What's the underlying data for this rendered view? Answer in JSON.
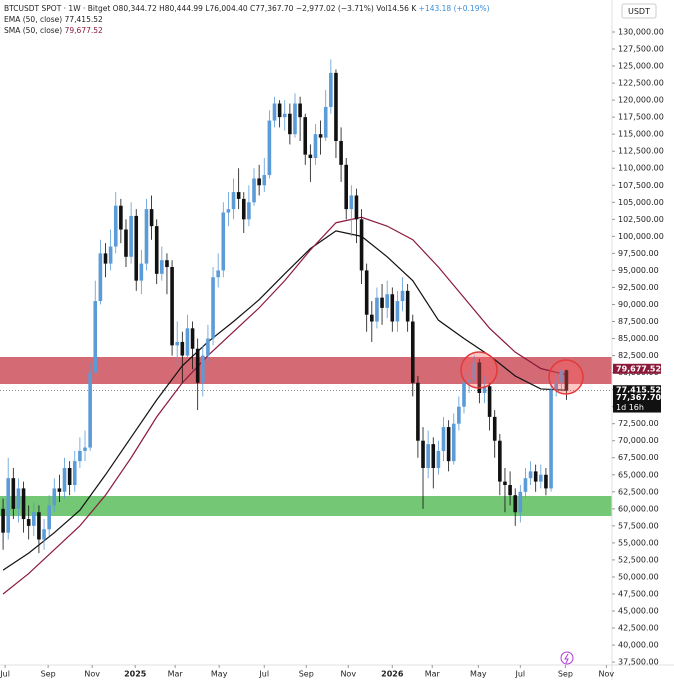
{
  "chart_data": {
    "type": "candlestick",
    "header": {
      "symbol": "BTCUSDT SPOT · 1W · Bitget",
      "ohlc": "O80,344.72 H80,444.99 L76,004.40 C77,367.70 −2,977.02 (−3.71%)",
      "volume": "Vol14.56 K",
      "change": "+143.18 (+0.19%)"
    },
    "currency": "USDT",
    "up_color": "#5b9bd8",
    "down_color": "#111111",
    "open": [
      60000,
      56500,
      64500,
      60000,
      63000,
      58500,
      57500,
      59500,
      55500,
      57000,
      60500,
      63000,
      62500,
      66000,
      63500,
      67000,
      68500,
      69000,
      80000,
      90500,
      97500,
      96000,
      98500,
      104500,
      101000,
      97000,
      103000,
      93500,
      96000,
      104000,
      101500,
      94500,
      96500,
      95500,
      84000,
      84500,
      82500,
      86500,
      83500,
      78500,
      82500,
      85000,
      94000,
      95000,
      103500,
      104000,
      106500,
      105500,
      102500,
      105000,
      108500,
      107500,
      109000,
      117000,
      119500,
      117500,
      118000,
      115000,
      119500,
      117500,
      112000,
      111500,
      115000,
      114500,
      119000,
      124000,
      114000,
      110500,
      104000,
      106000,
      102500,
      95000,
      88500,
      87500,
      91000,
      89500,
      91500,
      87500,
      90500,
      92000,
      87500,
      78500,
      70000,
      66000,
      69500,
      66000,
      68500,
      72000,
      67000,
      72500,
      75000,
      78500,
      79000,
      81500,
      77000,
      78000,
      73500,
      70000,
      64000,
      63500,
      62000,
      59500,
      62500,
      64500,
      65500,
      64000,
      65000,
      63000,
      77500,
      78500,
      80344.72
    ],
    "high": [
      61500,
      67500,
      66000,
      64500,
      64000,
      60500,
      61000,
      60500,
      58500,
      62000,
      64500,
      65000,
      67500,
      67000,
      68500,
      70500,
      71500,
      81500,
      93500,
      99500,
      99000,
      101000,
      106500,
      105500,
      102500,
      105000,
      104000,
      98000,
      105500,
      106000,
      102500,
      98500,
      97500,
      96500,
      87500,
      86000,
      88500,
      87500,
      85000,
      84000,
      87000,
      95500,
      97500,
      105000,
      106500,
      108500,
      110000,
      106500,
      107500,
      110000,
      110500,
      111500,
      118500,
      120500,
      120000,
      120000,
      119500,
      121000,
      120500,
      118000,
      113500,
      116500,
      117000,
      121500,
      126000,
      124500,
      116000,
      111500,
      107500,
      107000,
      104000,
      96000,
      90500,
      92500,
      93000,
      93500,
      92500,
      92000,
      94000,
      93000,
      88500,
      79500,
      72000,
      71500,
      70500,
      70000,
      73500,
      73000,
      74000,
      76500,
      80000,
      81000,
      82500,
      82000,
      79500,
      78500,
      74500,
      71000,
      66000,
      65500,
      63000,
      63500,
      66000,
      67000,
      66500,
      66500,
      66000,
      79000,
      80000,
      81000,
      80444.99
    ],
    "low": [
      54000,
      55500,
      58500,
      58000,
      56500,
      55500,
      56000,
      53500,
      54000,
      56000,
      59500,
      61000,
      61500,
      62000,
      62500,
      66000,
      67000,
      68500,
      79000,
      90000,
      94000,
      95000,
      97500,
      99000,
      95500,
      96000,
      92000,
      91500,
      95000,
      99500,
      93000,
      93500,
      91500,
      82500,
      81000,
      78500,
      82000,
      80500,
      74500,
      76500,
      81500,
      84000,
      92500,
      94000,
      101500,
      102500,
      104000,
      100500,
      101500,
      104500,
      106000,
      106500,
      108500,
      116000,
      116000,
      115500,
      113500,
      114500,
      114000,
      110500,
      108000,
      110500,
      112000,
      114000,
      118000,
      111500,
      108000,
      102500,
      100000,
      99000,
      93000,
      86000,
      84500,
      86500,
      87000,
      88000,
      86000,
      86000,
      89000,
      86000,
      76500,
      67500,
      60000,
      64500,
      63000,
      65000,
      67000,
      65500,
      66500,
      71500,
      74000,
      77000,
      78500,
      75500,
      75500,
      71500,
      67500,
      62000,
      59500,
      60500,
      57500,
      58000,
      61500,
      63500,
      62500,
      63000,
      62000,
      62500,
      76500,
      77500,
      76004.4
    ],
    "close": [
      56500,
      64500,
      60000,
      63000,
      58500,
      57500,
      59500,
      55500,
      57000,
      60500,
      63000,
      62500,
      66000,
      63500,
      67000,
      68500,
      69000,
      80000,
      90500,
      97500,
      96000,
      98500,
      104500,
      101000,
      97000,
      103000,
      93500,
      96000,
      104000,
      101500,
      94500,
      96500,
      95500,
      84000,
      84500,
      82500,
      86500,
      83500,
      78500,
      82500,
      85000,
      94000,
      95000,
      103500,
      104000,
      106500,
      105500,
      102500,
      105000,
      108500,
      107500,
      109000,
      117000,
      119500,
      117500,
      118000,
      115000,
      119500,
      117500,
      112000,
      111500,
      115000,
      114500,
      119000,
      124000,
      114000,
      110500,
      104000,
      106000,
      102500,
      95000,
      88500,
      87500,
      91000,
      89500,
      91500,
      87500,
      90500,
      92000,
      87500,
      78500,
      70000,
      66000,
      69500,
      66000,
      68500,
      72000,
      67000,
      72500,
      75000,
      78500,
      79000,
      81500,
      77000,
      78000,
      73500,
      70000,
      64000,
      63500,
      62000,
      59500,
      62500,
      64500,
      65500,
      64000,
      65000,
      63000,
      77500,
      78500,
      80344.72,
      77367.7
    ],
    "indicators": [
      {
        "name": "EMA (50, close)",
        "last_label": "77,415.52",
        "color": "#111111",
        "x": [
          0,
          5,
          10,
          15,
          20,
          25,
          30,
          35,
          40,
          45,
          50,
          55,
          60,
          65,
          70,
          75,
          80,
          85,
          90,
          95,
          100,
          105,
          110
        ],
        "values": [
          51000,
          53500,
          56500,
          59800,
          65000,
          70500,
          76000,
          81000,
          84500,
          87500,
          90700,
          94500,
          98200,
          100800,
          100000,
          97000,
          93500,
          87700,
          85000,
          82500,
          79500,
          77600,
          77415.52
        ]
      },
      {
        "name": "SMA (50, close)",
        "last_label": "79,677.52",
        "color": "#8b1a3a",
        "x": [
          0,
          5,
          10,
          15,
          20,
          25,
          30,
          35,
          40,
          45,
          50,
          55,
          60,
          65,
          70,
          75,
          80,
          85,
          90,
          95,
          100,
          105,
          110
        ],
        "values": [
          47500,
          50500,
          54000,
          57500,
          62000,
          67500,
          73500,
          78500,
          82500,
          86000,
          89500,
          93500,
          98000,
          102000,
          102800,
          101500,
          99500,
          95500,
          91000,
          86500,
          83000,
          80600,
          79677.52
        ]
      }
    ],
    "zones": [
      {
        "range": [
          78326,
          82290
        ],
        "color": "rgba(196,48,62,0.72)"
      },
      {
        "range": [
          58950,
          61886
        ],
        "color": "rgba(70,180,70,0.75)"
      }
    ],
    "price_markers": [
      {
        "value": 79677.52,
        "label": "79,677.52",
        "color": "#8b1a3a"
      },
      {
        "value": 77415.52,
        "label": "77,415.52",
        "color": "#111111"
      },
      {
        "value": 77367.7,
        "label": "77,367.70",
        "sublabel": "1d 16h",
        "color": "#111111"
      }
    ],
    "xlim": [
      -0.6,
      118.9
    ],
    "xticks": [
      {
        "value": 0.4,
        "label": "Jul"
      },
      {
        "value": 8.8,
        "label": "Sep"
      },
      {
        "value": 17.4,
        "label": "Nov"
      },
      {
        "value": 25.8,
        "label": "2025"
      },
      {
        "value": 33.6,
        "label": "Mar"
      },
      {
        "value": 42.2,
        "label": "May"
      },
      {
        "value": 51,
        "label": "Jul"
      },
      {
        "value": 59.2,
        "label": "Sep"
      },
      {
        "value": 67.4,
        "label": "Nov"
      },
      {
        "value": 76,
        "label": "2026"
      },
      {
        "value": 83.8,
        "label": "Mar"
      },
      {
        "value": 92.8,
        "label": "May"
      },
      {
        "value": 101,
        "label": "Jul"
      },
      {
        "value": 109.8,
        "label": "Sep"
      },
      {
        "value": 117.8,
        "label": "Nov"
      }
    ],
    "ylim": [
      37076,
      134697
    ],
    "yticks": [
      {
        "value": 37500,
        "label": "37,500.00"
      },
      {
        "value": 40000,
        "label": "40,000.00"
      },
      {
        "value": 42500,
        "label": "42,500.00"
      },
      {
        "value": 45000,
        "label": "45,000.00"
      },
      {
        "value": 47500,
        "label": "47,500.00"
      },
      {
        "value": 50000,
        "label": "50,000.00"
      },
      {
        "value": 52500,
        "label": "52,500.00"
      },
      {
        "value": 55000,
        "label": "55,000.00"
      },
      {
        "value": 57500,
        "label": "57,500.00"
      },
      {
        "value": 60000,
        "label": "60,000.00"
      },
      {
        "value": 62500,
        "label": "62,500.00"
      },
      {
        "value": 65000,
        "label": "65,000.00"
      },
      {
        "value": 67500,
        "label": "67,500.00"
      },
      {
        "value": 70000,
        "label": "70,000.00"
      },
      {
        "value": 72500,
        "label": "72,500.00"
      },
      {
        "value": 75000,
        "label": "75,000.00"
      },
      {
        "value": 77500,
        "label": "77,500.00"
      },
      {
        "value": 80000,
        "label": "80,000.00"
      },
      {
        "value": 82500,
        "label": "82,500.00"
      },
      {
        "value": 85000,
        "label": "85,000.00"
      },
      {
        "value": 87500,
        "label": "87,500.00"
      },
      {
        "value": 90000,
        "label": "90,000.00"
      },
      {
        "value": 92500,
        "label": "92,500.00"
      },
      {
        "value": 95000,
        "label": "95,000.00"
      },
      {
        "value": 97500,
        "label": "97,500.00"
      },
      {
        "value": 100000,
        "label": "100,000.00"
      },
      {
        "value": 102500,
        "label": "102,500.00"
      },
      {
        "value": 105000,
        "label": "105,000.00"
      },
      {
        "value": 107500,
        "label": "107,500.00"
      },
      {
        "value": 110000,
        "label": "110,000.00"
      },
      {
        "value": 112500,
        "label": "112,500.00"
      },
      {
        "value": 115000,
        "label": "115,000.00"
      },
      {
        "value": 117500,
        "label": "117,500.00"
      },
      {
        "value": 120000,
        "label": "120,000.00"
      },
      {
        "value": 122500,
        "label": "122,500.00"
      },
      {
        "value": 125000,
        "label": "125,000.00"
      },
      {
        "value": 127500,
        "label": "127,500.00"
      },
      {
        "value": 130000,
        "label": "130,000.00"
      }
    ],
    "grid": false
  }
}
